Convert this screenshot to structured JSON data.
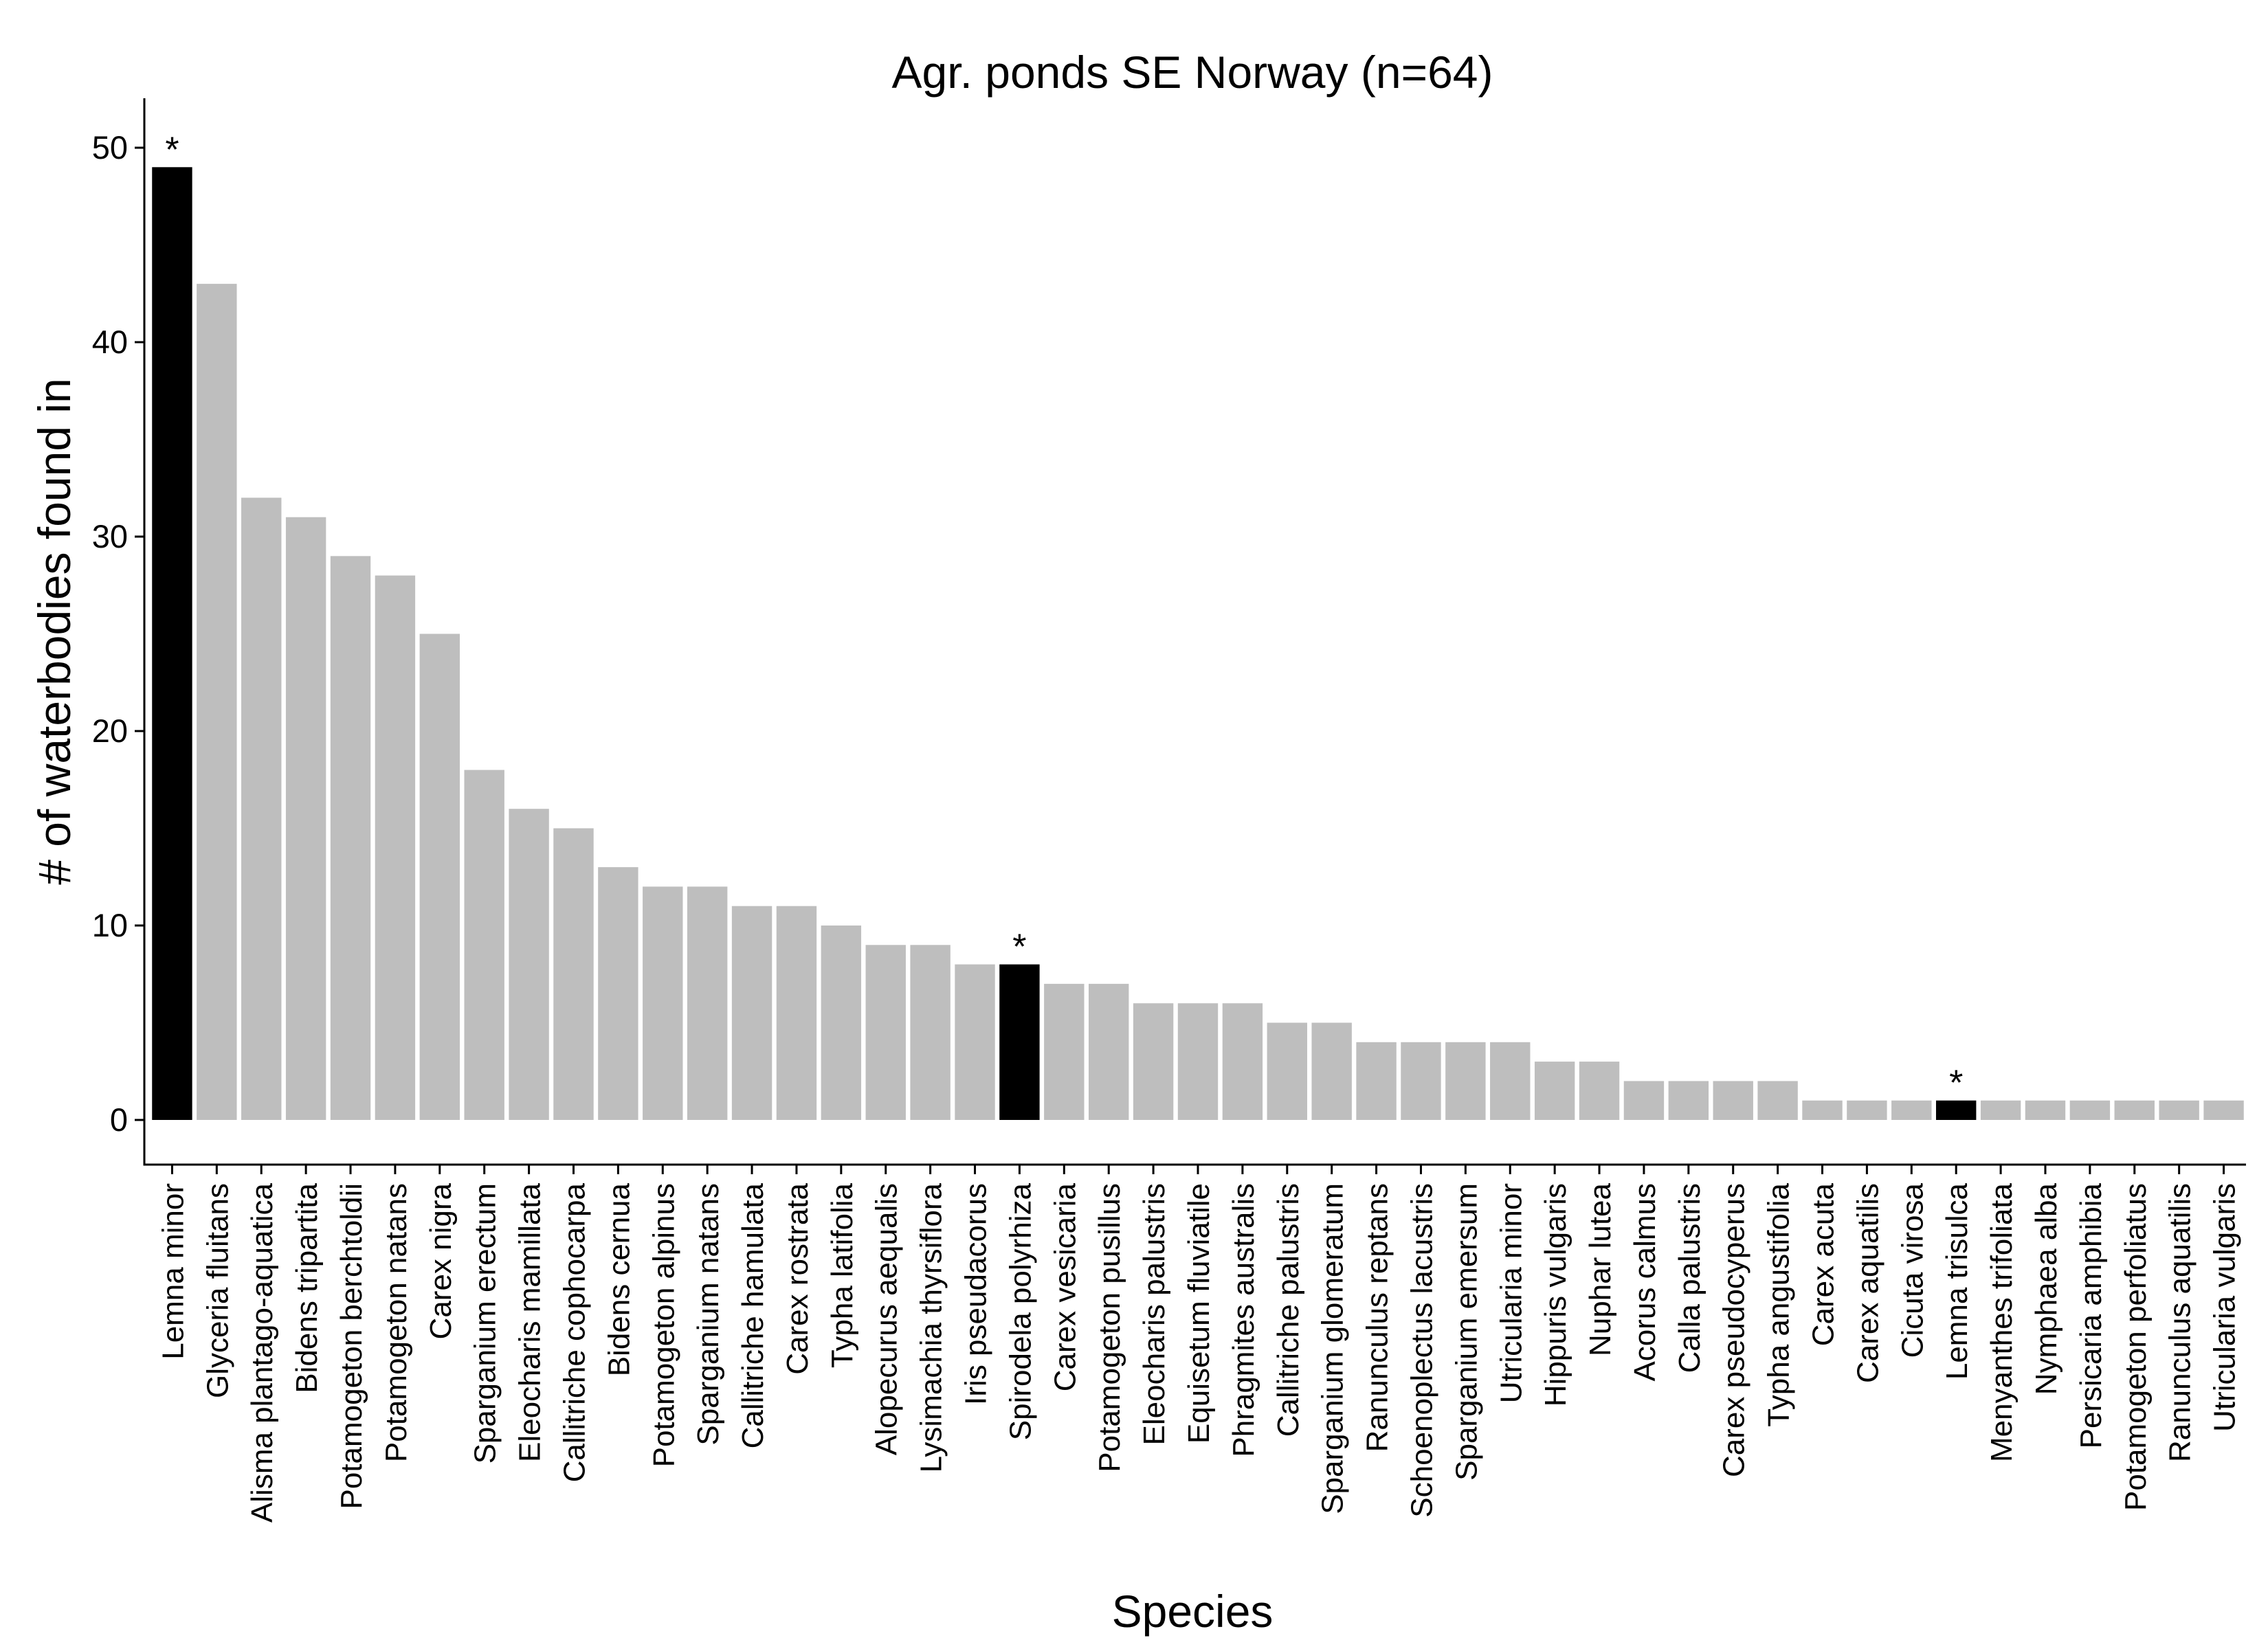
{
  "chart_data": {
    "type": "bar",
    "title": "Agr. ponds SE Norway (n=64)",
    "xlabel": "Species",
    "ylabel": "# of waterbodies found in",
    "ylim": [
      0,
      52
    ],
    "yticks": [
      0,
      10,
      20,
      30,
      40,
      50
    ],
    "grid": false,
    "legend": "none",
    "colors": {
      "default": "#bebebe",
      "highlight": "#000000"
    },
    "highlight_marker": "*",
    "categories": [
      "Lemna minor",
      "Glyceria fluitans",
      "Alisma plantago-aquatica",
      "Bidens tripartita",
      "Potamogeton berchtoldii",
      "Potamogeton natans",
      "Carex nigra",
      "Sparganium erectum",
      "Eleocharis mamillata",
      "Callitriche cophocarpa",
      "Bidens cernua",
      "Potamogeton alpinus",
      "Sparganium natans",
      "Callitriche hamulata",
      "Carex rostrata",
      "Typha latifolia",
      "Alopecurus aequalis",
      "Lysimachia thyrsiflora",
      "Iris pseudacorus",
      "Spirodela polyrhiza",
      "Carex vesicaria",
      "Potamogeton pusillus",
      "Eleocharis palustris",
      "Equisetum fluviatile",
      "Phragmites australis",
      "Callitriche palustris",
      "Sparganium glomeratum",
      "Ranunculus reptans",
      "Schoenoplectus lacustris",
      "Sparganium emersum",
      "Utricularia minor",
      "Hippuris vulgaris",
      "Nuphar lutea",
      "Acorus calmus",
      "Calla palustris",
      "Carex pseudocyperus",
      "Typha angustifolia",
      "Carex acuta",
      "Carex aquatilis",
      "Cicuta virosa",
      "Lemna trisulca",
      "Menyanthes trifoliata",
      "Nymphaea alba",
      "Persicaria amphibia",
      "Potamogeton perfoliatus",
      "Ranunculus aquatilis",
      "Utricularia vulgaris"
    ],
    "values": [
      49,
      43,
      32,
      31,
      29,
      28,
      25,
      18,
      16,
      15,
      13,
      12,
      12,
      11,
      11,
      10,
      9,
      9,
      8,
      8,
      7,
      7,
      6,
      6,
      6,
      5,
      5,
      4,
      4,
      4,
      4,
      3,
      3,
      2,
      2,
      2,
      2,
      1,
      1,
      1,
      1,
      1,
      1,
      1,
      1,
      1,
      1
    ],
    "highlighted": [
      "Lemna minor",
      "Spirodela polyrhiza",
      "Lemna trisulca"
    ]
  }
}
